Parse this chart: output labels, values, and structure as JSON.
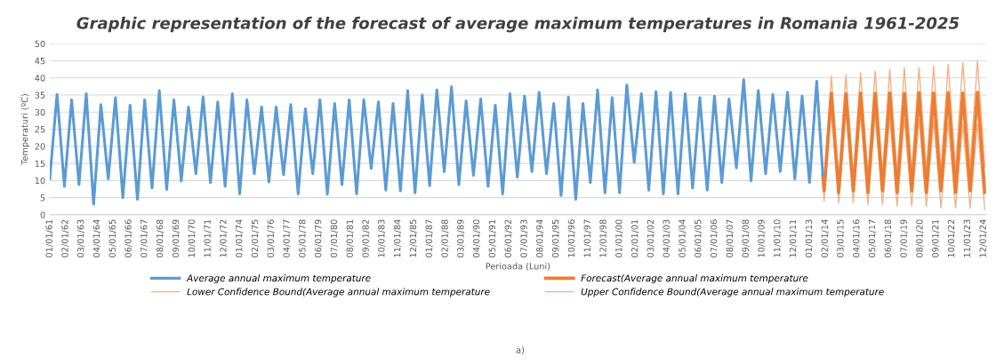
{
  "chart_data": {
    "type": "line",
    "title": "Graphic representation of the forecast of average maximum temperatures in Romania 1961-2025",
    "xlabel": "Perioada (Luni)",
    "ylabel": "Temperaturi (ºC)",
    "ylim": [
      0,
      50
    ],
    "yticks": [
      0,
      5,
      10,
      15,
      20,
      25,
      30,
      35,
      40,
      45,
      50
    ],
    "xlim": [
      "1961-01",
      "2025-02"
    ],
    "xticks": [
      {
        "value": "1961-01",
        "label": "01/01/61"
      },
      {
        "value": "1962-02",
        "label": "02/01/62"
      },
      {
        "value": "1963-03",
        "label": "03/01/63"
      },
      {
        "value": "1964-04",
        "label": "04/01/64"
      },
      {
        "value": "1965-05",
        "label": "05/01/65"
      },
      {
        "value": "1966-06",
        "label": "06/01/66"
      },
      {
        "value": "1967-07",
        "label": "07/01/67"
      },
      {
        "value": "1968-08",
        "label": "08/01/68"
      },
      {
        "value": "1969-09",
        "label": "09/01/69"
      },
      {
        "value": "1970-10",
        "label": "10/01/70"
      },
      {
        "value": "1971-11",
        "label": "11/01/71"
      },
      {
        "value": "1972-12",
        "label": "12/01/72"
      },
      {
        "value": "1974-01",
        "label": "01/01/74"
      },
      {
        "value": "1975-02",
        "label": "02/01/75"
      },
      {
        "value": "1976-03",
        "label": "03/01/76"
      },
      {
        "value": "1977-04",
        "label": "04/01/77"
      },
      {
        "value": "1978-05",
        "label": "05/01/78"
      },
      {
        "value": "1979-06",
        "label": "06/01/79"
      },
      {
        "value": "1980-07",
        "label": "07/01/80"
      },
      {
        "value": "1981-08",
        "label": "08/01/81"
      },
      {
        "value": "1982-09",
        "label": "09/01/82"
      },
      {
        "value": "1983-10",
        "label": "10/01/83"
      },
      {
        "value": "1984-11",
        "label": "11/01/84"
      },
      {
        "value": "1985-12",
        "label": "12/01/85"
      },
      {
        "value": "1987-01",
        "label": "01/01/87"
      },
      {
        "value": "1988-02",
        "label": "02/01/88"
      },
      {
        "value": "1989-03",
        "label": "03/01/89"
      },
      {
        "value": "1990-04",
        "label": "04/01/90"
      },
      {
        "value": "1991-05",
        "label": "05/01/91"
      },
      {
        "value": "1992-06",
        "label": "06/01/92"
      },
      {
        "value": "1993-07",
        "label": "07/01/93"
      },
      {
        "value": "1994-08",
        "label": "08/01/94"
      },
      {
        "value": "1995-09",
        "label": "09/01/95"
      },
      {
        "value": "1996-10",
        "label": "10/01/96"
      },
      {
        "value": "1997-11",
        "label": "11/01/97"
      },
      {
        "value": "1998-12",
        "label": "12/01/98"
      },
      {
        "value": "2000-01",
        "label": "01/01/00"
      },
      {
        "value": "2001-02",
        "label": "02/01/01"
      },
      {
        "value": "2002-03",
        "label": "03/01/02"
      },
      {
        "value": "2003-04",
        "label": "04/01/03"
      },
      {
        "value": "2004-05",
        "label": "05/01/04"
      },
      {
        "value": "2005-06",
        "label": "06/01/05"
      },
      {
        "value": "2006-07",
        "label": "07/01/06"
      },
      {
        "value": "2007-08",
        "label": "08/01/07"
      },
      {
        "value": "2008-09",
        "label": "09/01/08"
      },
      {
        "value": "2009-10",
        "label": "10/01/09"
      },
      {
        "value": "2010-11",
        "label": "11/01/10"
      },
      {
        "value": "2011-12",
        "label": "12/01/11"
      },
      {
        "value": "2013-01",
        "label": "01/01/13"
      },
      {
        "value": "2014-02",
        "label": "02/01/14"
      },
      {
        "value": "2015-03",
        "label": "03/01/15"
      },
      {
        "value": "2016-04",
        "label": "04/01/16"
      },
      {
        "value": "2017-05",
        "label": "05/01/17"
      },
      {
        "value": "2018-06",
        "label": "06/01/18"
      },
      {
        "value": "2019-07",
        "label": "07/01/19"
      },
      {
        "value": "2020-08",
        "label": "08/01/20"
      },
      {
        "value": "2021-09",
        "label": "09/01/21"
      },
      {
        "value": "2022-10",
        "label": "10/01/22"
      },
      {
        "value": "2023-11",
        "label": "11/01/23"
      },
      {
        "value": "2024-12",
        "label": "12/01/24"
      }
    ],
    "grid": "y",
    "legend": "bottom",
    "marker": "none",
    "line_style": "solid",
    "annotations": [
      "a)"
    ],
    "series": [
      {
        "name": "Average annual maximum temperature",
        "color": "#5b9bd5",
        "x": [
          "1961-01",
          "1961-07",
          "1962-01",
          "1962-07",
          "1963-01",
          "1963-07",
          "1964-01",
          "1964-07",
          "1965-01",
          "1965-07",
          "1966-01",
          "1966-07",
          "1967-01",
          "1967-07",
          "1968-01",
          "1968-07",
          "1969-01",
          "1969-07",
          "1970-01",
          "1970-07",
          "1971-01",
          "1971-07",
          "1972-01",
          "1972-07",
          "1973-01",
          "1973-07",
          "1974-01",
          "1974-07",
          "1975-01",
          "1975-07",
          "1976-01",
          "1976-07",
          "1977-01",
          "1977-07",
          "1978-01",
          "1978-07",
          "1979-01",
          "1979-07",
          "1980-01",
          "1980-07",
          "1981-01",
          "1981-07",
          "1982-01",
          "1982-07",
          "1983-01",
          "1983-07",
          "1984-01",
          "1984-07",
          "1985-01",
          "1985-07",
          "1986-01",
          "1986-07",
          "1987-01",
          "1987-07",
          "1988-01",
          "1988-07",
          "1989-01",
          "1989-07",
          "1990-01",
          "1990-07",
          "1991-01",
          "1991-07",
          "1992-01",
          "1992-07",
          "1993-01",
          "1993-07",
          "1994-01",
          "1994-07",
          "1995-01",
          "1995-07",
          "1996-01",
          "1996-07",
          "1997-01",
          "1997-07",
          "1998-01",
          "1998-07",
          "1999-01",
          "1999-07",
          "2000-01",
          "2000-07",
          "2001-01",
          "2001-07",
          "2002-01",
          "2002-07",
          "2003-01",
          "2003-07",
          "2004-01",
          "2004-07",
          "2005-01",
          "2005-07",
          "2006-01",
          "2006-07",
          "2007-01",
          "2007-07",
          "2008-01",
          "2008-07",
          "2009-01",
          "2009-07",
          "2010-01",
          "2010-07",
          "2011-01",
          "2011-07",
          "2012-01",
          "2012-07",
          "2013-01",
          "2013-07",
          "2013-12"
        ],
        "values": [
          10.5,
          35.2,
          8.3,
          33.6,
          8.8,
          35.4,
          3.1,
          32.2,
          10.5,
          34.2,
          5,
          32,
          4.5,
          33.6,
          7.8,
          36.3,
          7.4,
          33.6,
          9.9,
          31.5,
          12,
          34.4,
          9.4,
          33,
          8.3,
          35.4,
          6.1,
          33.6,
          12,
          31.5,
          9.6,
          31.5,
          11.7,
          32.2,
          6.1,
          31,
          12,
          33.6,
          6,
          32.5,
          8.8,
          33.6,
          6.1,
          33.6,
          13.5,
          33,
          7.2,
          32.5,
          7,
          36.3,
          6.4,
          35,
          8.5,
          36.5,
          12.6,
          37.4,
          8.8,
          33.3,
          11.5,
          33.8,
          8.3,
          32,
          6.1,
          35.4,
          11,
          34.7,
          12.6,
          35.8,
          12,
          32.5,
          5.6,
          34.4,
          4.5,
          32.5,
          9.4,
          36.5,
          6.4,
          34.2,
          6.4,
          37.9,
          15.3,
          35.4,
          7.2,
          36,
          6.1,
          35.8,
          6.1,
          35.4,
          7.8,
          34.2,
          7.2,
          34.7,
          9.4,
          33.8,
          13.7,
          39.5,
          9.9,
          36.3,
          12,
          35.2,
          12.6,
          35.8,
          10.5,
          34.7,
          9.4,
          39,
          11.5
        ]
      },
      {
        "name": "Forecast(Average annual maximum temperature",
        "color": "#ed7d31",
        "x": [
          "2013-12",
          "2014-01",
          "2014-07",
          "2015-01",
          "2015-07",
          "2016-01",
          "2016-07",
          "2017-01",
          "2017-07",
          "2018-01",
          "2018-07",
          "2019-01",
          "2019-07",
          "2020-01",
          "2020-07",
          "2021-01",
          "2021-07",
          "2022-01",
          "2022-07",
          "2023-01",
          "2023-07",
          "2024-01",
          "2024-07",
          "2025-01"
        ],
        "values": [
          11.5,
          7,
          35.5,
          6.5,
          35.4,
          7,
          35.6,
          6.5,
          35.5,
          7,
          35.6,
          6.5,
          35.5,
          7,
          35.7,
          6.5,
          35.6,
          7,
          35.7,
          6.5,
          35.6,
          7,
          35.8,
          6.5
        ]
      },
      {
        "name": "Lower Confidence Bound(Average annual maximum temperature",
        "color": "#e8b58f",
        "x": [
          "2013-12",
          "2014-01",
          "2014-07",
          "2015-01",
          "2015-07",
          "2016-01",
          "2016-07",
          "2017-01",
          "2017-07",
          "2018-01",
          "2018-07",
          "2019-01",
          "2019-07",
          "2020-01",
          "2020-07",
          "2021-01",
          "2021-07",
          "2022-01",
          "2022-07",
          "2023-01",
          "2023-07",
          "2024-01",
          "2024-07",
          "2025-01"
        ],
        "values": [
          11.5,
          4,
          30.5,
          3.5,
          30,
          3.5,
          29.5,
          3,
          29,
          3,
          28.5,
          2.5,
          28,
          2.5,
          28,
          2.5,
          27.5,
          2,
          27,
          2,
          26.5,
          2,
          26.5,
          1.5
        ]
      },
      {
        "name": "Upper Confidence Bound(Average annual maximum temperature",
        "color": "#f4b183",
        "x": [
          "2013-12",
          "2014-01",
          "2014-07",
          "2015-01",
          "2015-07",
          "2016-01",
          "2016-07",
          "2017-01",
          "2017-07",
          "2018-01",
          "2018-07",
          "2019-01",
          "2019-07",
          "2020-01",
          "2020-07",
          "2021-01",
          "2021-07",
          "2022-01",
          "2022-07",
          "2023-01",
          "2023-07",
          "2024-01",
          "2024-07",
          "2025-01"
        ],
        "values": [
          11.5,
          10,
          40.5,
          10.5,
          41,
          11,
          41.5,
          11.5,
          42,
          12,
          42.5,
          12,
          43,
          12.5,
          43,
          13,
          43.5,
          13,
          44,
          13.5,
          44.5,
          14,
          45,
          14
        ]
      }
    ]
  }
}
